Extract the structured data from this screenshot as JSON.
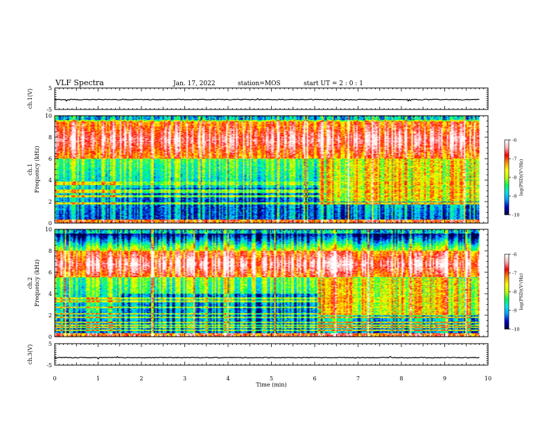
{
  "header": {
    "title": "VLF Spectra",
    "date": "Jan. 17, 2022",
    "station": "station=MOS",
    "start": "start UT = 2 : 0 : 1"
  },
  "chart_data": [
    {
      "type": "line",
      "name_id": "ch1-waveform",
      "ylabel": "ch.1(V)",
      "ylim": [
        -5,
        5
      ],
      "yticks": [
        "5",
        "-5"
      ],
      "xlim": [
        0,
        10
      ],
      "series": [
        {
          "x": [
            0,
            9.8
          ],
          "y": [
            -0.4,
            -0.4
          ]
        }
      ]
    },
    {
      "type": "heatmap",
      "name_id": "ch1-spectrogram",
      "ylabel_channel": "ch.1",
      "ylabel": "Frequency (kHz)",
      "ylim": [
        0,
        10
      ],
      "yticks": [
        "0",
        "2",
        "4",
        "6",
        "8",
        "10"
      ],
      "xlim": [
        0,
        10
      ],
      "data_end_x": 9.8,
      "quiet_interval": [
        1.5,
        6.1
      ],
      "quiet_band_khz": [
        0.5,
        3.3
      ],
      "intense_band_khz": [
        6.0,
        9.5
      ],
      "colorbar": {
        "label": "log(PSD)(V²/Hz)",
        "range": [
          -10,
          -6
        ],
        "ticks": [
          "-6",
          "-7",
          "-8",
          "-9",
          "-10"
        ]
      }
    },
    {
      "type": "heatmap",
      "name_id": "ch2-spectrogram",
      "ylabel_channel": "ch.2",
      "ylabel": "Frequency (kHz)",
      "ylim": [
        0,
        10
      ],
      "yticks": [
        "0",
        "2",
        "4",
        "6",
        "8",
        "10"
      ],
      "xlim": [
        0,
        10
      ],
      "data_end_x": 9.8,
      "quiet_interval": [
        1.5,
        6.1
      ],
      "quiet_band_khz": [
        0.5,
        4.0
      ],
      "intense_band_khz": [
        5.5,
        8.0
      ],
      "colorbar": {
        "label": "log(PSD)(V²/Hz)",
        "range": [
          -10,
          -6
        ],
        "ticks": [
          "-6",
          "-7",
          "-8",
          "-9",
          "-10"
        ]
      }
    },
    {
      "type": "line",
      "name_id": "ch3-waveform",
      "ylabel": "ch.3(V)",
      "ylim": [
        -5,
        5
      ],
      "yticks": [
        "5",
        "-5"
      ],
      "xlim": [
        0,
        10
      ],
      "series": [
        {
          "x": [
            0,
            9.8
          ],
          "y": [
            -1.5,
            -1.5
          ]
        }
      ]
    }
  ],
  "xaxis": {
    "label": "Time (min)",
    "ticks": [
      "0",
      "1",
      "2",
      "3",
      "4",
      "5",
      "6",
      "7",
      "8",
      "9",
      "10"
    ]
  },
  "colors": {
    "axis": "#000000",
    "colormap": [
      "#000040",
      "#0000c8",
      "#00a0ff",
      "#00e8e8",
      "#00ff50",
      "#c8ff00",
      "#ffff00",
      "#ff9000",
      "#ff0000",
      "#ffb4b4",
      "#ffffff"
    ]
  }
}
